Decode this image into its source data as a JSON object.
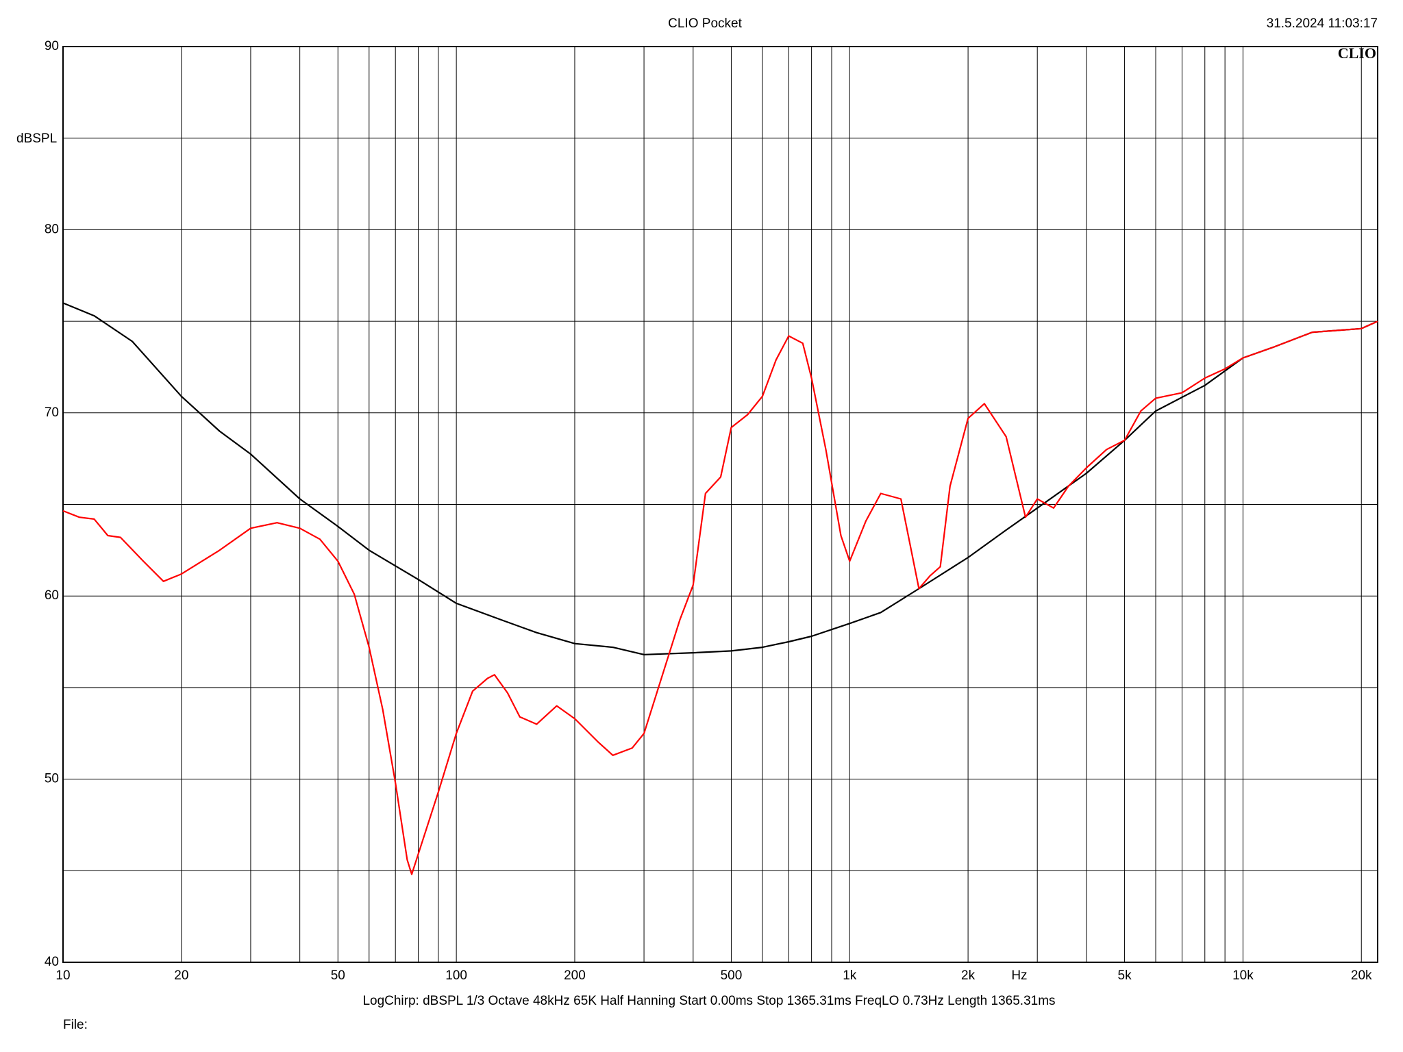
{
  "chart_data": {
    "type": "line",
    "title": "CLIO Pocket",
    "timestamp": "31.5.2024 11:03:17",
    "logo": "CLIO",
    "y_label": "dBSPL",
    "x_label": "Hz",
    "footer": "LogChirp:  dBSPL   1/3 Octave   48kHz   65K   Half Hanning   Start 0.00ms   Stop 1365.31ms   FreqLO 0.73Hz   Length 1365.31ms",
    "file_label": "File:",
    "xscale": "log",
    "grid": true,
    "xlim": [
      10,
      22000
    ],
    "ylim": [
      40,
      90
    ],
    "xticks": [
      10,
      20,
      50,
      100,
      200,
      500,
      {
        "value": 1000,
        "label": "1k"
      },
      {
        "value": 2000,
        "label": "2k"
      },
      {
        "value": 5000,
        "label": "5k"
      },
      {
        "value": 10000,
        "label": "10k"
      },
      {
        "value": 20000,
        "label": "20k"
      }
    ],
    "x_label_at": 2700,
    "x_minor_grid": [
      30,
      40,
      60,
      70,
      80,
      90,
      300,
      400,
      600,
      700,
      800,
      900,
      3000,
      4000,
      6000,
      7000,
      8000,
      9000
    ],
    "yticks": [
      40,
      50,
      60,
      70,
      80,
      90
    ],
    "y_minor_grid": [
      45,
      55,
      65,
      75,
      85
    ],
    "series": [
      {
        "name": "black",
        "color": "#000000",
        "x": [
          10,
          12,
          15,
          20,
          25,
          30,
          40,
          50,
          60,
          80,
          100,
          130,
          160,
          200,
          250,
          300,
          400,
          500,
          600,
          700,
          800,
          1000,
          1200,
          1500,
          2000,
          2500,
          3000,
          4000,
          5000,
          6000,
          8000,
          10000,
          12000,
          15000,
          20000,
          22000
        ],
        "values": [
          76.0,
          75.3,
          73.9,
          70.9,
          69.0,
          67.75,
          65.3,
          63.8,
          62.5,
          60.9,
          59.6,
          58.7,
          58.0,
          57.4,
          57.2,
          56.8,
          56.9,
          57.0,
          57.2,
          57.5,
          57.8,
          58.5,
          59.1,
          60.4,
          62.1,
          63.6,
          64.8,
          66.7,
          68.5,
          70.1,
          71.5,
          73.0,
          73.6,
          74.4,
          74.6,
          75.0
        ]
      },
      {
        "name": "red",
        "color": "#ff0000",
        "x": [
          10,
          11,
          12,
          13,
          14,
          16,
          18,
          20,
          25,
          30,
          35,
          40,
          45,
          50,
          55,
          60,
          65,
          70,
          75,
          77,
          80,
          90,
          100,
          110,
          120,
          125,
          135,
          145,
          160,
          180,
          200,
          230,
          250,
          280,
          300,
          340,
          370,
          400,
          430,
          470,
          500,
          550,
          600,
          650,
          700,
          760,
          800,
          870,
          950,
          1000,
          1100,
          1200,
          1350,
          1500,
          1600,
          1700,
          1800,
          2000,
          2200,
          2500,
          2800,
          3000,
          3300,
          3600,
          4000,
          4500,
          5000,
          5500,
          6000,
          7000,
          8000,
          9000,
          10000,
          12000,
          15000,
          20000,
          22000
        ],
        "values": [
          64.65,
          64.3,
          64.2,
          63.3,
          63.2,
          61.9,
          60.8,
          61.2,
          62.5,
          63.7,
          64.0,
          63.7,
          63.1,
          61.9,
          60.1,
          57.2,
          53.8,
          49.8,
          45.6,
          44.8,
          45.9,
          49.3,
          52.5,
          54.8,
          55.5,
          55.7,
          54.7,
          53.4,
          53.0,
          54.0,
          53.3,
          52.0,
          51.3,
          51.7,
          52.5,
          56.2,
          58.7,
          60.6,
          65.6,
          66.5,
          69.2,
          69.9,
          70.9,
          72.9,
          74.2,
          73.8,
          71.9,
          68.0,
          63.3,
          61.9,
          64.1,
          65.6,
          65.3,
          60.4,
          61.1,
          61.6,
          66.0,
          69.7,
          70.5,
          68.7,
          64.3,
          65.3,
          64.8,
          66.0,
          67.0,
          68.0,
          68.5,
          70.1,
          70.8,
          71.1,
          71.9,
          72.4,
          73.0,
          73.6,
          74.4,
          74.6,
          75.0
        ]
      }
    ]
  }
}
